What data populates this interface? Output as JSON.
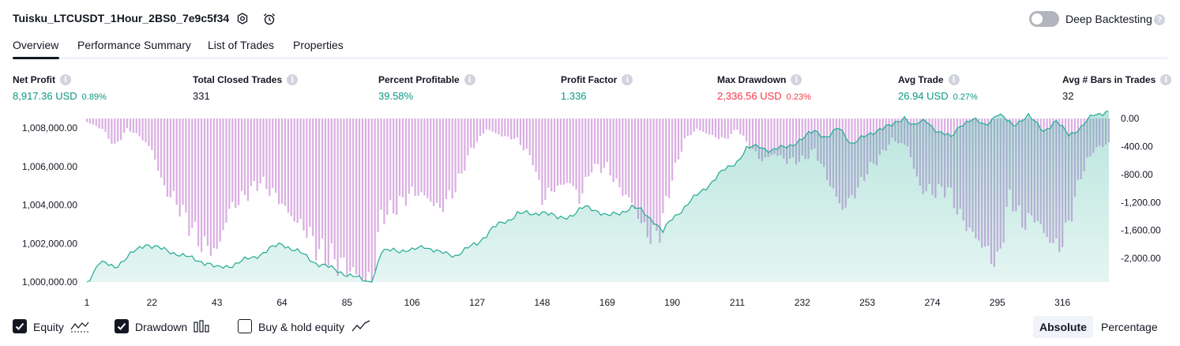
{
  "header": {
    "strategy_title": "Tuisku_LTCUSDT_1Hour_2BS0_7e9c5f34",
    "deep_backtesting_label": "Deep Backtesting",
    "deep_backtesting_on": false
  },
  "tabs": [
    {
      "label": "Overview",
      "active": true
    },
    {
      "label": "Performance Summary",
      "active": false
    },
    {
      "label": "List of Trades",
      "active": false
    },
    {
      "label": "Properties",
      "active": false
    }
  ],
  "stats": {
    "net_profit": {
      "label": "Net Profit",
      "value": "8,917.36 USD",
      "pct": "0.89%"
    },
    "total_closed_trades": {
      "label": "Total Closed Trades",
      "value": "331"
    },
    "percent_profitable": {
      "label": "Percent Profitable",
      "value": "39.58%"
    },
    "profit_factor": {
      "label": "Profit Factor",
      "value": "1.336"
    },
    "max_drawdown": {
      "label": "Max Drawdown",
      "value": "2,336.56 USD",
      "pct": "0.23%"
    },
    "avg_trade": {
      "label": "Avg Trade",
      "value": "26.94 USD",
      "pct": "0.27%"
    },
    "avg_bars": {
      "label": "Avg # Bars in Trades",
      "value": "32"
    }
  },
  "chart_data": {
    "type": "area",
    "left_axis": {
      "ticks": [
        "1,008,000.00",
        "1,006,000.00",
        "1,004,000.00",
        "1,002,000.00",
        "1,000,000.00"
      ],
      "range": [
        1000000,
        1008500
      ]
    },
    "right_axis": {
      "ticks": [
        "0.00",
        "-400.00",
        "-800.00",
        "-1,200.00",
        "-1,600.00",
        "-2,000.00"
      ],
      "range": [
        -2336.56,
        0
      ]
    },
    "x_ticks": [
      "1",
      "22",
      "43",
      "64",
      "85",
      "106",
      "127",
      "148",
      "169",
      "190",
      "211",
      "232",
      "253",
      "274",
      "295",
      "316"
    ],
    "x_range": [
      1,
      331
    ],
    "equity_anchors": [
      [
        1,
        1000000
      ],
      [
        5,
        1001000
      ],
      [
        10,
        1000800
      ],
      [
        15,
        1001400
      ],
      [
        20,
        1002000
      ],
      [
        25,
        1001700
      ],
      [
        30,
        1001500
      ],
      [
        35,
        1001200
      ],
      [
        40,
        1001000
      ],
      [
        43,
        1000700
      ],
      [
        48,
        1000900
      ],
      [
        55,
        1001300
      ],
      [
        60,
        1001700
      ],
      [
        64,
        1002000
      ],
      [
        70,
        1001500
      ],
      [
        75,
        1001000
      ],
      [
        80,
        1000700
      ],
      [
        85,
        1000400
      ],
      [
        90,
        1000100
      ],
      [
        93,
        1000000
      ],
      [
        96,
        1001500
      ],
      [
        100,
        1001700
      ],
      [
        106,
        1001600
      ],
      [
        110,
        1001900
      ],
      [
        115,
        1001500
      ],
      [
        120,
        1001400
      ],
      [
        127,
        1002000
      ],
      [
        132,
        1002800
      ],
      [
        137,
        1003200
      ],
      [
        140,
        1003600
      ],
      [
        145,
        1003500
      ],
      [
        148,
        1003700
      ],
      [
        153,
        1003300
      ],
      [
        158,
        1003500
      ],
      [
        162,
        1003900
      ],
      [
        165,
        1003800
      ],
      [
        169,
        1003400
      ],
      [
        173,
        1003600
      ],
      [
        177,
        1003900
      ],
      [
        180,
        1003700
      ],
      [
        184,
        1003200
      ],
      [
        187,
        1002600
      ],
      [
        190,
        1003300
      ],
      [
        194,
        1003900
      ],
      [
        198,
        1004500
      ],
      [
        202,
        1005100
      ],
      [
        206,
        1005700
      ],
      [
        211,
        1006300
      ],
      [
        214,
        1006900
      ],
      [
        218,
        1007100
      ],
      [
        222,
        1006800
      ],
      [
        226,
        1007000
      ],
      [
        232,
        1007400
      ],
      [
        236,
        1007900
      ],
      [
        240,
        1007500
      ],
      [
        244,
        1008000
      ],
      [
        248,
        1007200
      ],
      [
        253,
        1007600
      ],
      [
        257,
        1008000
      ],
      [
        261,
        1008100
      ],
      [
        265,
        1008600
      ],
      [
        268,
        1008100
      ],
      [
        272,
        1008400
      ],
      [
        276,
        1007800
      ],
      [
        280,
        1007500
      ],
      [
        283,
        1008200
      ],
      [
        287,
        1008400
      ],
      [
        291,
        1008200
      ],
      [
        295,
        1008700
      ],
      [
        300,
        1008200
      ],
      [
        305,
        1008600
      ],
      [
        310,
        1007900
      ],
      [
        314,
        1008300
      ],
      [
        318,
        1007700
      ],
      [
        322,
        1008000
      ],
      [
        326,
        1008700
      ],
      [
        331,
        1008900
      ]
    ],
    "drawdown_anchors": [
      [
        1,
        -50
      ],
      [
        6,
        -150
      ],
      [
        10,
        -400
      ],
      [
        14,
        -150
      ],
      [
        18,
        -250
      ],
      [
        22,
        -450
      ],
      [
        26,
        -1000
      ],
      [
        30,
        -1200
      ],
      [
        34,
        -1500
      ],
      [
        38,
        -1800
      ],
      [
        43,
        -1900
      ],
      [
        47,
        -1300
      ],
      [
        52,
        -1100
      ],
      [
        57,
        -900
      ],
      [
        62,
        -1100
      ],
      [
        67,
        -1400
      ],
      [
        72,
        -1600
      ],
      [
        76,
        -1900
      ],
      [
        80,
        -2000
      ],
      [
        84,
        -2100
      ],
      [
        89,
        -2250
      ],
      [
        93,
        -2336
      ],
      [
        96,
        -1400
      ],
      [
        100,
        -1300
      ],
      [
        106,
        -1050
      ],
      [
        110,
        -1100
      ],
      [
        115,
        -1300
      ],
      [
        120,
        -1000
      ],
      [
        125,
        -450
      ],
      [
        130,
        -150
      ],
      [
        135,
        -250
      ],
      [
        140,
        -300
      ],
      [
        145,
        -600
      ],
      [
        148,
        -1150
      ],
      [
        152,
        -1000
      ],
      [
        157,
        -900
      ],
      [
        160,
        -1150
      ],
      [
        164,
        -700
      ],
      [
        169,
        -700
      ],
      [
        173,
        -1000
      ],
      [
        177,
        -1200
      ],
      [
        180,
        -1500
      ],
      [
        183,
        -1700
      ],
      [
        186,
        -1600
      ],
      [
        190,
        -850
      ],
      [
        194,
        -300
      ],
      [
        198,
        -150
      ],
      [
        203,
        -250
      ],
      [
        207,
        -300
      ],
      [
        211,
        -150
      ],
      [
        215,
        -400
      ],
      [
        219,
        -600
      ],
      [
        223,
        -500
      ],
      [
        227,
        -600
      ],
      [
        232,
        -600
      ],
      [
        236,
        -450
      ],
      [
        240,
        -850
      ],
      [
        245,
        -1300
      ],
      [
        250,
        -1000
      ],
      [
        253,
        -750
      ],
      [
        257,
        -550
      ],
      [
        261,
        -300
      ],
      [
        266,
        -400
      ],
      [
        270,
        -1000
      ],
      [
        274,
        -1050
      ],
      [
        279,
        -1000
      ],
      [
        283,
        -1400
      ],
      [
        287,
        -1650
      ],
      [
        291,
        -1850
      ],
      [
        295,
        -2100
      ],
      [
        299,
        -1100
      ],
      [
        303,
        -1500
      ],
      [
        307,
        -1400
      ],
      [
        311,
        -1700
      ],
      [
        315,
        -1850
      ],
      [
        318,
        -1500
      ],
      [
        322,
        -800
      ],
      [
        326,
        -450
      ],
      [
        331,
        -350
      ]
    ],
    "series": [
      {
        "name": "Equity",
        "color": "#22ab94"
      },
      {
        "name": "Drawdown",
        "color": "#ce93d8"
      }
    ]
  },
  "footer": {
    "checkboxes": [
      {
        "label": "Equity",
        "checked": true,
        "icon": "equity-line-icon"
      },
      {
        "label": "Drawdown",
        "checked": true,
        "icon": "drawdown-bars-icon"
      },
      {
        "label": "Buy & hold equity",
        "checked": false,
        "icon": "buyhold-line-icon"
      }
    ],
    "modes": [
      {
        "label": "Absolute",
        "active": true
      },
      {
        "label": "Percentage",
        "active": false
      }
    ]
  },
  "colors": {
    "positive": "#089981",
    "negative": "#f23645",
    "equity_line": "#22ab94",
    "drawdown_bar": "#ce93d8"
  }
}
